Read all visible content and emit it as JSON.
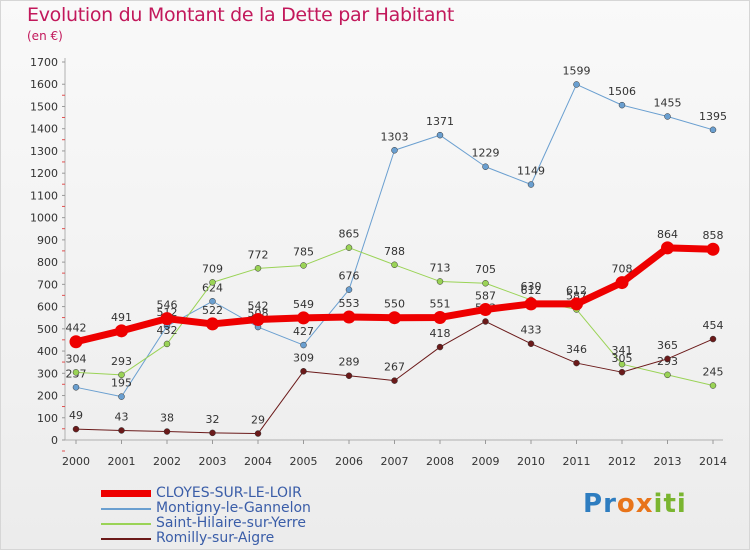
{
  "title": "Evolution du Montant de la Dette par Habitant",
  "subtitle": "(en €)",
  "logo_text": "Proxiti",
  "logo_letters": [
    {
      "ch": "P",
      "color": "#2e7dc0"
    },
    {
      "ch": "r",
      "color": "#2e7dc0"
    },
    {
      "ch": "o",
      "color": "#e8741a"
    },
    {
      "ch": "x",
      "color": "#e8741a"
    },
    {
      "ch": "i",
      "color": "#7ab530"
    },
    {
      "ch": "t",
      "color": "#7ab530"
    },
    {
      "ch": "i",
      "color": "#7ab530"
    }
  ],
  "chart_data": {
    "type": "line",
    "title": "Evolution du Montant de la Dette par Habitant",
    "subtitle": "(en €)",
    "x": [
      "2000",
      "2001",
      "2002",
      "2003",
      "2004",
      "2005",
      "2006",
      "2007",
      "2008",
      "2009",
      "2010",
      "2011",
      "2012",
      "2013",
      "2014"
    ],
    "ylim": [
      0,
      1700
    ],
    "yticks": [
      0,
      100,
      200,
      300,
      400,
      500,
      600,
      700,
      800,
      900,
      1000,
      1100,
      1200,
      1300,
      1400,
      1500,
      1600,
      1700
    ],
    "grid": false,
    "legend_position": "bottom-left",
    "series": [
      {
        "name": "CLOYES-SUR-LE-LOIR",
        "color": "#ee0000",
        "width": 7,
        "values": [
          442,
          491,
          546,
          522,
          542,
          549,
          553,
          550,
          551,
          587,
          612,
          612,
          708,
          864,
          858
        ]
      },
      {
        "name": "Montigny-le-Gannelon",
        "color": "#6a9fd0",
        "width": 1,
        "values": [
          237,
          195,
          512,
          624,
          508,
          427,
          676,
          1303,
          1371,
          1229,
          1149,
          1599,
          1506,
          1455,
          1395
        ]
      },
      {
        "name": "Saint-Hilaire-sur-Yerre",
        "color": "#9ad356",
        "width": 1,
        "values": [
          304,
          293,
          432,
          709,
          772,
          785,
          865,
          788,
          713,
          705,
          630,
          587,
          341,
          293,
          245
        ]
      },
      {
        "name": "Romilly-sur-Aigre",
        "color": "#6b1a1a",
        "width": 1,
        "values": [
          49,
          43,
          38,
          32,
          29,
          309,
          289,
          267,
          418,
          533,
          433,
          346,
          305,
          365,
          454
        ]
      }
    ]
  }
}
